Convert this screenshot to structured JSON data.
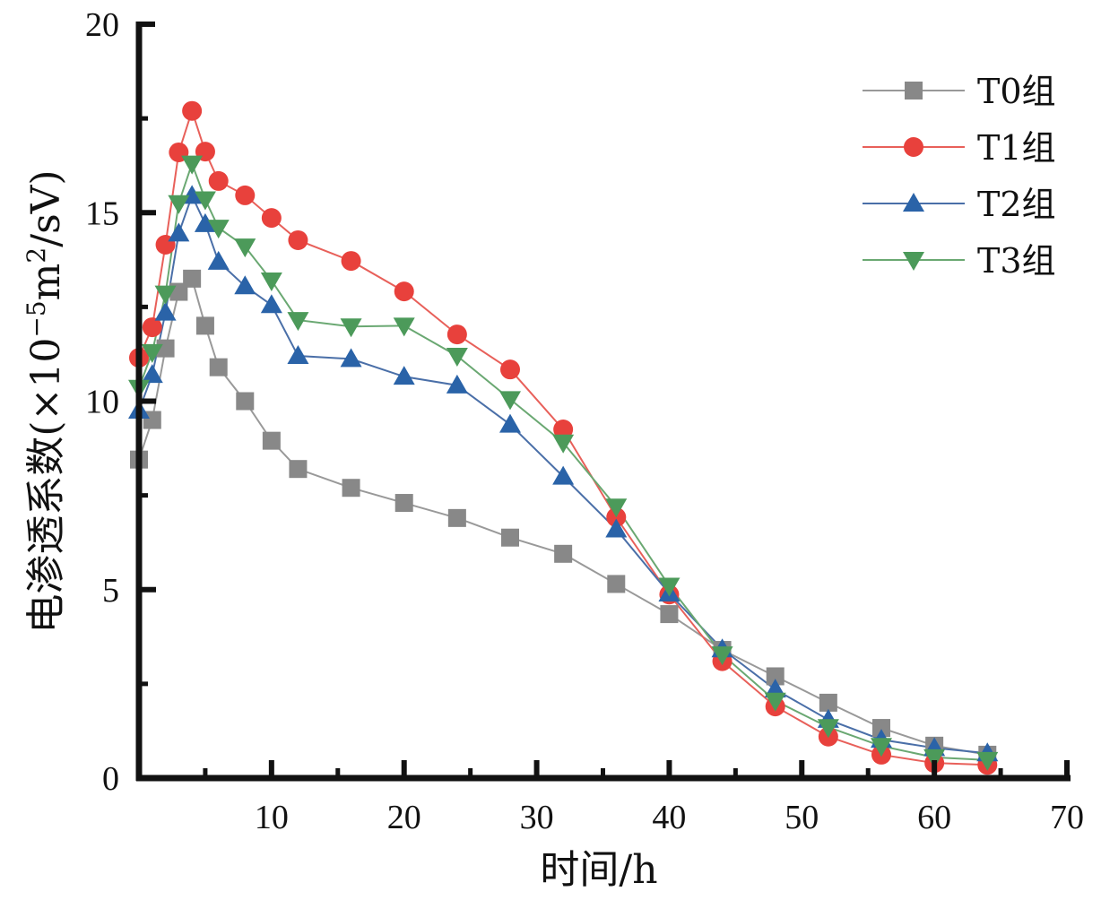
{
  "chart_data": {
    "type": "line",
    "title": "",
    "xlabel": "时间/h",
    "ylabel": "电渗透系数(×10⁻⁵m²/sV)",
    "ylabel_parts": {
      "main": "电渗透系数(×10",
      "sup1": "−5",
      "mid": "m",
      "sup2": "2",
      "tail": "/sV)"
    },
    "xlim": [
      0,
      70
    ],
    "ylim": [
      0,
      20
    ],
    "xticks": [
      10,
      20,
      30,
      40,
      50,
      60,
      70
    ],
    "xtick_labels": [
      "10",
      "20",
      "30",
      "40",
      "50",
      "60",
      "70"
    ],
    "x_minor_ticks": [
      5,
      15,
      25,
      35,
      45,
      55,
      65
    ],
    "yticks": [
      0,
      5,
      10,
      15,
      20
    ],
    "ytick_labels": [
      "0",
      "5",
      "10",
      "15",
      "20"
    ],
    "y_minor_ticks": [
      2.5,
      7.5,
      12.5,
      17.5
    ],
    "grid": false,
    "legend_position": "top-right",
    "x": [
      0,
      1,
      2,
      3,
      4,
      5,
      6,
      8,
      10,
      12,
      16,
      20,
      24,
      28,
      32,
      36,
      40,
      44,
      48,
      52,
      56,
      60,
      64
    ],
    "series": [
      {
        "name": "T0组",
        "marker": "square",
        "color": "#888888",
        "line_color": "#999999",
        "values": [
          8.45,
          9.5,
          11.4,
          12.9,
          13.25,
          12.0,
          10.9,
          10.0,
          8.95,
          8.2,
          7.7,
          7.3,
          6.9,
          6.38,
          5.95,
          5.15,
          4.35,
          3.4,
          2.7,
          2.0,
          1.33,
          0.86,
          0.62
        ]
      },
      {
        "name": "T1组",
        "marker": "circle",
        "color": "#e8413c",
        "line_color": "#e8605a",
        "values": [
          11.15,
          11.96,
          14.15,
          16.6,
          17.7,
          16.62,
          15.84,
          15.46,
          14.86,
          14.27,
          13.72,
          12.91,
          11.77,
          10.84,
          9.25,
          6.92,
          4.87,
          3.1,
          1.9,
          1.1,
          0.62,
          0.4,
          0.35
        ]
      },
      {
        "name": "T2组",
        "marker": "triangle-up",
        "color": "#2a63a8",
        "line_color": "#4a6fa8",
        "values": [
          9.75,
          10.7,
          12.35,
          14.45,
          15.45,
          14.7,
          13.7,
          13.05,
          12.55,
          11.2,
          11.12,
          10.65,
          10.42,
          9.38,
          8.0,
          6.6,
          4.9,
          3.42,
          2.35,
          1.55,
          1.02,
          0.8,
          0.66
        ]
      },
      {
        "name": "T3组",
        "marker": "triangle-down",
        "color": "#4c9a5a",
        "line_color": "#6aa872",
        "values": [
          10.35,
          11.3,
          12.85,
          15.25,
          16.3,
          15.35,
          14.6,
          14.1,
          13.2,
          12.15,
          11.98,
          12.0,
          11.2,
          10.05,
          8.9,
          7.2,
          5.1,
          3.28,
          2.05,
          1.35,
          0.85,
          0.55,
          0.48
        ]
      }
    ]
  }
}
